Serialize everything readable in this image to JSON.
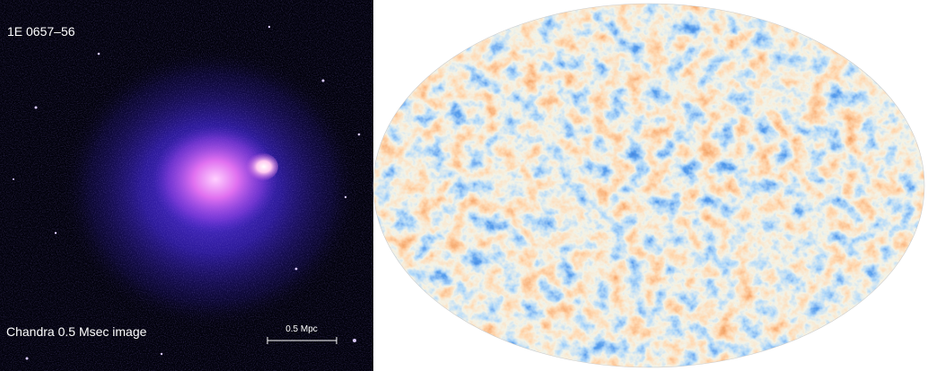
{
  "left_panel": {
    "title": "1E 0657–56",
    "caption": "Chandra 0.5 Msec image",
    "scale_bar_label": "0.5 Mpc"
  }
}
